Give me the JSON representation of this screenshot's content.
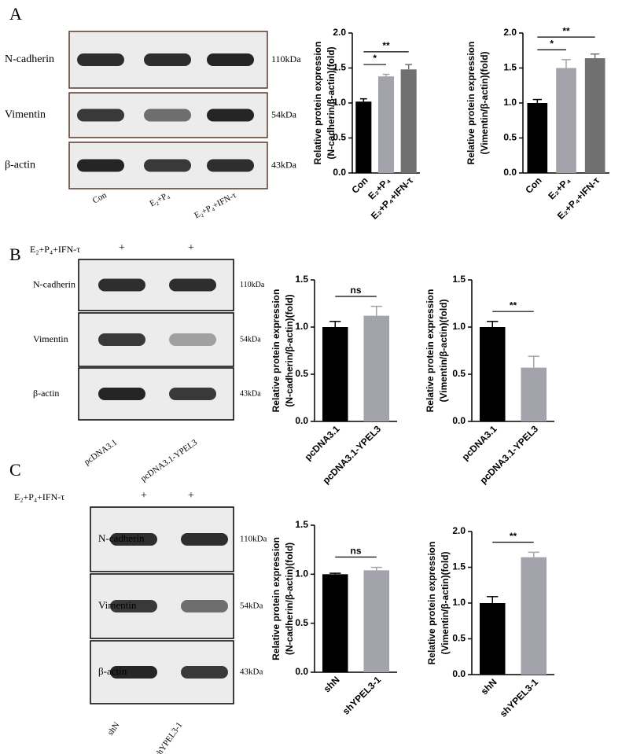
{
  "panels": [
    {
      "label": "A",
      "rows": [
        {
          "protein": "N-cadherin",
          "size": "110kDa"
        },
        {
          "protein": "Vimentin",
          "size": "54kDa"
        },
        {
          "protein": "β-actin",
          "size": "43kDa"
        }
      ],
      "lanes": [
        "Con",
        "E₂+P₄",
        "E₂+P₄+IFN-τ"
      ]
    },
    {
      "label": "B",
      "treatment": "E₂+P₄+IFN-τ",
      "treatment_marks": [
        "+",
        "+"
      ],
      "rows": [
        {
          "protein": "N-cadherin",
          "size": "110kDa"
        },
        {
          "protein": "Vimentin",
          "size": "54kDa"
        },
        {
          "protein": "β-actin",
          "size": "43kDa"
        }
      ],
      "lanes": [
        "pcDNA3.1",
        "pcDNA3.1-YPEL3"
      ]
    },
    {
      "label": "C",
      "treatment": "E₂+P₄+IFN-τ",
      "treatment_marks": [
        "+",
        "+"
      ],
      "rows": [
        {
          "protein": "N-cadherin",
          "size": "110kDa"
        },
        {
          "protein": "Vimentin",
          "size": "54kDa"
        },
        {
          "protein": "β-actin",
          "size": "43kDa"
        }
      ],
      "lanes": [
        "shN",
        "shYPEL3-1"
      ]
    }
  ],
  "chart_data": [
    {
      "type": "bar",
      "ylabel": [
        "Relative protein expression",
        "(N-cadherin/β-actin)(fold)"
      ],
      "categories": [
        "Con",
        "E₂+P₄",
        "E₂+P₄+IFN-τ"
      ],
      "values": [
        1.02,
        1.38,
        1.48
      ],
      "errors": [
        0.04,
        0.03,
        0.07
      ],
      "colors": [
        "#000000",
        "#a3a3ab",
        "#707070"
      ],
      "ylim": [
        0,
        2
      ],
      "yticks": [
        {
          "value": 0,
          "label": "0.0"
        },
        {
          "value": 0.5,
          "label": "0.5"
        },
        {
          "value": 1,
          "label": "1.0"
        },
        {
          "value": 1.5,
          "label": "1.5"
        },
        {
          "value": 2,
          "label": "2.0"
        }
      ],
      "annotations": [
        {
          "text": "*",
          "between": [
            0,
            1
          ]
        },
        {
          "text": "**",
          "between": [
            0,
            2
          ]
        }
      ]
    },
    {
      "type": "bar",
      "ylabel": [
        "Relative protein expression",
        "(Vimentin/β-actin)(fold)"
      ],
      "categories": [
        "Con",
        "E₂+P₄",
        "E₂+P₄+IFN-τ"
      ],
      "values": [
        1.0,
        1.5,
        1.64
      ],
      "errors": [
        0.05,
        0.12,
        0.06
      ],
      "colors": [
        "#000000",
        "#a3a3ab",
        "#707070"
      ],
      "ylim": [
        0,
        2
      ],
      "yticks": [
        {
          "value": 0,
          "label": "0.0"
        },
        {
          "value": 0.5,
          "label": "0.5"
        },
        {
          "value": 1,
          "label": "1.0"
        },
        {
          "value": 1.5,
          "label": "1.5"
        },
        {
          "value": 2,
          "label": "2.0"
        }
      ],
      "annotations": [
        {
          "text": "*",
          "between": [
            0,
            1
          ]
        },
        {
          "text": "**",
          "between": [
            0,
            2
          ]
        }
      ]
    },
    {
      "type": "bar",
      "ylabel": [
        "Relative protein expression",
        "(N-cadherin/β-actin)(fold)"
      ],
      "categories": [
        "pcDNA3.1",
        "pcDNA3.1-YPEL3"
      ],
      "values": [
        1.0,
        1.12
      ],
      "errors": [
        0.06,
        0.1
      ],
      "colors": [
        "#000000",
        "#a3a3ab"
      ],
      "ylim": [
        0,
        1.5
      ],
      "yticks": [
        {
          "value": 0,
          "label": "0.0"
        },
        {
          "value": 0.5,
          "label": "0.5"
        },
        {
          "value": 1,
          "label": "1.0"
        },
        {
          "value": 1.5,
          "label": "1.5"
        }
      ],
      "annotations": [
        {
          "text": "ns",
          "between": [
            0,
            1
          ]
        }
      ]
    },
    {
      "type": "bar",
      "ylabel": [
        "Relative protein expression",
        "(Vimentin/β-actin)(fold)"
      ],
      "categories": [
        "pcDNA3.1",
        "pcDNA3.1-YPEL3"
      ],
      "values": [
        1.0,
        0.57
      ],
      "errors": [
        0.06,
        0.12
      ],
      "colors": [
        "#000000",
        "#a3a3ab"
      ],
      "ylim": [
        0,
        1.5
      ],
      "yticks": [
        {
          "value": 0,
          "label": "0.0"
        },
        {
          "value": 0.5,
          "label": "0.5"
        },
        {
          "value": 1,
          "label": "1.0"
        },
        {
          "value": 1.5,
          "label": "1.5"
        }
      ],
      "annotations": [
        {
          "text": "**",
          "between": [
            0,
            1
          ]
        }
      ]
    },
    {
      "type": "bar",
      "ylabel": [
        "Relative protein expression",
        "(N-cadherin/β-actin)(fold)"
      ],
      "categories": [
        "shN",
        "shYPEL3-1"
      ],
      "values": [
        1.0,
        1.04
      ],
      "errors": [
        0.01,
        0.03
      ],
      "colors": [
        "#000000",
        "#a3a3ab"
      ],
      "ylim": [
        0,
        1.5
      ],
      "yticks": [
        {
          "value": 0,
          "label": "0.0"
        },
        {
          "value": 0.5,
          "label": "0.5"
        },
        {
          "value": 1,
          "label": "1.0"
        },
        {
          "value": 1.5,
          "label": "1.5"
        }
      ],
      "annotations": [
        {
          "text": "ns",
          "between": [
            0,
            1
          ]
        }
      ]
    },
    {
      "type": "bar",
      "ylabel": [
        "Relative protein expression",
        "(Vimentin/β-actin)(fold)"
      ],
      "categories": [
        "shN",
        "shYPEL3-1"
      ],
      "values": [
        1.0,
        1.64
      ],
      "errors": [
        0.09,
        0.07
      ],
      "colors": [
        "#000000",
        "#a3a3ab"
      ],
      "ylim": [
        0,
        2
      ],
      "yticks": [
        {
          "value": 0,
          "label": "0.0"
        },
        {
          "value": 0.5,
          "label": "0.5"
        },
        {
          "value": 1,
          "label": "1.0"
        },
        {
          "value": 1.5,
          "label": "1.5"
        },
        {
          "value": 2,
          "label": "2.0"
        }
      ],
      "annotations": [
        {
          "text": "**",
          "between": [
            0,
            1
          ]
        }
      ]
    }
  ]
}
